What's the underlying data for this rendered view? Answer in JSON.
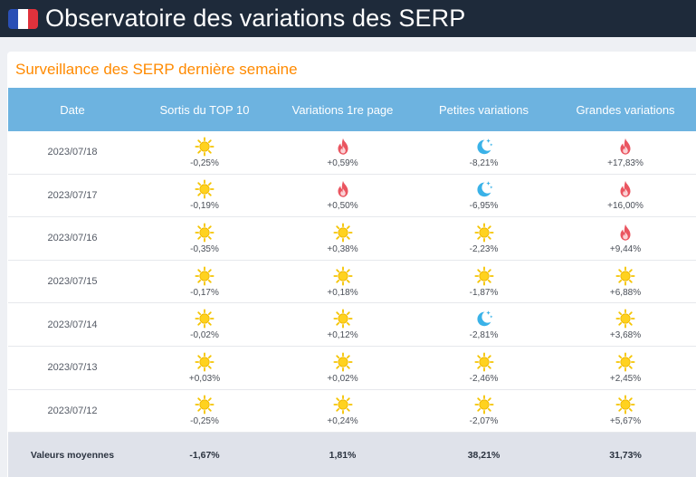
{
  "header": {
    "title": "Observatoire des variations des SERP",
    "flag_icon": "france-flag-icon"
  },
  "card": {
    "title": "Surveillance des SERP dernière semaine"
  },
  "table": {
    "columns": [
      "Date",
      "Sortis du TOP 10",
      "Variations 1re page",
      "Petites variations",
      "Grandes variations"
    ],
    "rows": [
      {
        "date": "2023/07/18",
        "cells": [
          {
            "icon": "sun-icon",
            "value": "-0,25%"
          },
          {
            "icon": "fire-icon",
            "value": "+0,59%"
          },
          {
            "icon": "moon-icon",
            "value": "-8,21%"
          },
          {
            "icon": "fire-icon",
            "value": "+17,83%"
          }
        ]
      },
      {
        "date": "2023/07/17",
        "cells": [
          {
            "icon": "sun-icon",
            "value": "-0,19%"
          },
          {
            "icon": "fire-icon",
            "value": "+0,50%"
          },
          {
            "icon": "moon-icon",
            "value": "-6,95%"
          },
          {
            "icon": "fire-icon",
            "value": "+16,00%"
          }
        ]
      },
      {
        "date": "2023/07/16",
        "cells": [
          {
            "icon": "sun-icon",
            "value": "-0,35%"
          },
          {
            "icon": "sun-icon",
            "value": "+0,38%"
          },
          {
            "icon": "sun-icon",
            "value": "-2,23%"
          },
          {
            "icon": "fire-icon",
            "value": "+9,44%"
          }
        ]
      },
      {
        "date": "2023/07/15",
        "cells": [
          {
            "icon": "sun-icon",
            "value": "-0,17%"
          },
          {
            "icon": "sun-icon",
            "value": "+0,18%"
          },
          {
            "icon": "sun-icon",
            "value": "-1,87%"
          },
          {
            "icon": "sun-icon",
            "value": "+6,88%"
          }
        ]
      },
      {
        "date": "2023/07/14",
        "cells": [
          {
            "icon": "sun-icon",
            "value": "-0,02%"
          },
          {
            "icon": "sun-icon",
            "value": "+0,12%"
          },
          {
            "icon": "moon-icon",
            "value": "-2,81%"
          },
          {
            "icon": "sun-icon",
            "value": "+3,68%"
          }
        ]
      },
      {
        "date": "2023/07/13",
        "cells": [
          {
            "icon": "sun-icon",
            "value": "+0,03%"
          },
          {
            "icon": "sun-icon",
            "value": "+0,02%"
          },
          {
            "icon": "sun-icon",
            "value": "-2,46%"
          },
          {
            "icon": "sun-icon",
            "value": "+2,45%"
          }
        ]
      },
      {
        "date": "2023/07/12",
        "cells": [
          {
            "icon": "sun-icon",
            "value": "-0,25%"
          },
          {
            "icon": "sun-icon",
            "value": "+0,24%"
          },
          {
            "icon": "sun-icon",
            "value": "-2,07%"
          },
          {
            "icon": "sun-icon",
            "value": "+5,67%"
          }
        ]
      }
    ],
    "footer": {
      "label": "Valeurs moyennes",
      "values": [
        "-1,67%",
        "1,81%",
        "38,21%",
        "31,73%"
      ]
    }
  },
  "colors": {
    "topbar": "#1e2a3a",
    "accent": "#ff8a00",
    "table_header": "#6db3e0",
    "sun": "#f5c400",
    "fire": "#e8505b",
    "moon": "#3ab2e8"
  }
}
